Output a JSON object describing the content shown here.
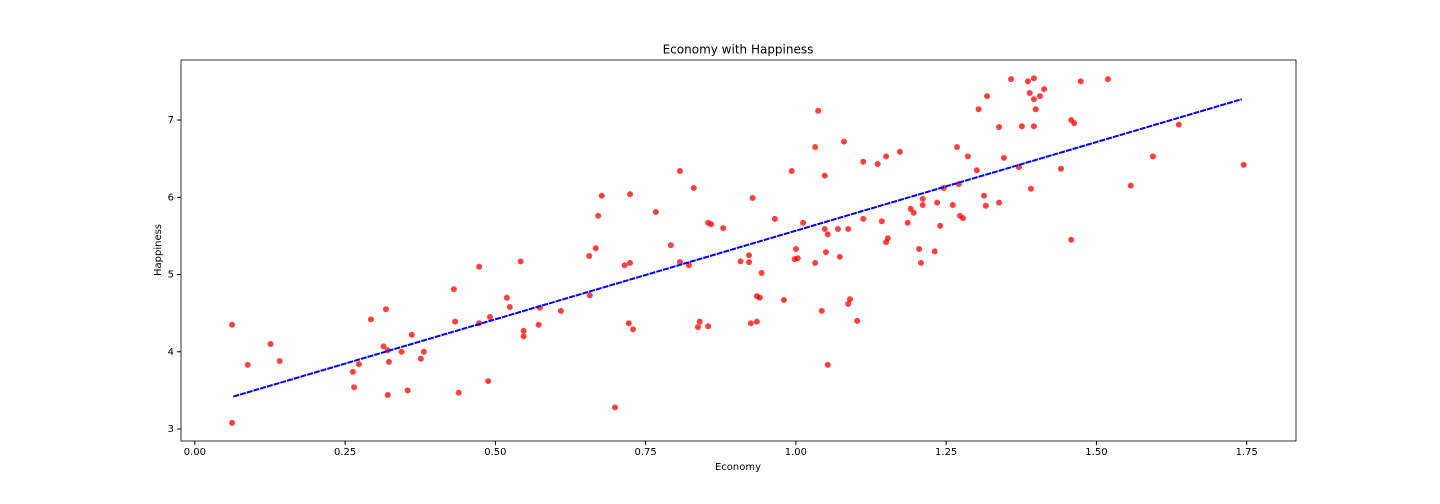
{
  "chart_data": {
    "type": "scatter",
    "title": "Economy with Happiness",
    "xlabel": "Economy",
    "ylabel": "Happiness",
    "x": [
      0.062,
      0.062,
      0.088,
      0.126,
      0.141,
      0.263,
      0.265,
      0.273,
      0.293,
      0.314,
      0.318,
      0.321,
      0.323,
      0.321,
      0.344,
      0.354,
      0.361,
      0.376,
      0.381,
      0.431,
      0.433,
      0.439,
      0.473,
      0.473,
      0.488,
      0.491,
      0.519,
      0.524,
      0.542,
      0.547,
      0.547,
      0.572,
      0.574,
      0.609,
      0.657,
      0.699,
      0.656,
      0.667,
      0.671,
      0.677,
      0.715,
      0.724,
      0.722,
      0.729,
      0.724,
      0.767,
      0.792,
      0.807,
      0.807,
      0.822,
      0.83,
      0.837,
      0.84,
      0.854,
      0.854,
      0.859,
      0.879,
      0.908,
      0.922,
      0.922,
      0.928,
      0.925,
      0.935,
      0.935,
      0.94,
      0.943,
      0.965,
      0.98,
      0.993,
      0.998,
      1.003,
      1.0,
      1.012,
      1.032,
      1.032,
      1.037,
      1.043,
      1.048,
      1.048,
      1.05,
      1.053,
      1.053,
      1.07,
      1.073,
      1.08,
      1.087,
      1.087,
      1.09,
      1.102,
      1.112,
      1.112,
      1.136,
      1.143,
      1.15,
      1.15,
      1.153,
      1.173,
      1.186,
      1.191,
      1.196,
      1.205,
      1.208,
      1.211,
      1.211,
      1.231,
      1.235,
      1.24,
      1.246,
      1.261,
      1.268,
      1.271,
      1.273,
      1.278,
      1.286,
      1.301,
      1.304,
      1.313,
      1.318,
      1.316,
      1.338,
      1.338,
      1.346,
      1.358,
      1.371,
      1.376,
      1.386,
      1.389,
      1.391,
      1.396,
      1.396,
      1.399,
      1.396,
      1.406,
      1.413,
      1.441,
      1.458,
      1.463,
      1.458,
      1.474,
      1.519,
      1.557,
      1.594,
      1.637,
      1.745
    ],
    "values": [
      4.35,
      3.08,
      3.83,
      4.1,
      3.88,
      3.74,
      3.54,
      3.84,
      4.42,
      4.07,
      4.55,
      4.02,
      3.87,
      3.44,
      4.0,
      3.5,
      4.22,
      3.91,
      4.0,
      4.81,
      4.39,
      3.47,
      5.1,
      4.37,
      3.62,
      4.45,
      4.7,
      4.58,
      5.17,
      4.27,
      4.2,
      4.35,
      4.57,
      4.53,
      4.73,
      3.28,
      5.24,
      5.34,
      5.76,
      6.02,
      5.12,
      5.15,
      4.37,
      4.29,
      6.04,
      5.81,
      5.38,
      6.34,
      5.16,
      5.12,
      6.12,
      4.32,
      4.39,
      4.33,
      5.67,
      5.65,
      5.6,
      5.17,
      5.25,
      5.16,
      5.99,
      4.37,
      4.72,
      4.39,
      4.7,
      5.02,
      5.72,
      4.67,
      6.34,
      5.2,
      5.21,
      5.33,
      5.67,
      5.15,
      6.65,
      7.12,
      4.53,
      6.28,
      5.59,
      5.29,
      5.52,
      3.83,
      5.59,
      5.23,
      6.72,
      5.59,
      4.62,
      4.68,
      4.4,
      5.72,
      6.46,
      6.43,
      5.69,
      6.53,
      5.42,
      5.47,
      6.59,
      5.67,
      5.85,
      5.8,
      5.33,
      5.15,
      5.9,
      5.98,
      5.3,
      5.93,
      5.63,
      6.12,
      5.9,
      6.65,
      6.17,
      5.76,
      5.73,
      6.53,
      6.35,
      7.14,
      6.02,
      7.31,
      5.89,
      5.93,
      6.91,
      6.51,
      7.53,
      6.39,
      6.92,
      7.5,
      7.35,
      6.11,
      7.27,
      7.54,
      7.14,
      6.92,
      7.31,
      7.4,
      6.37,
      7.0,
      6.96,
      5.45,
      7.5,
      7.53,
      6.15,
      6.53,
      6.94,
      6.42
    ],
    "color": "#ff0000",
    "trend": {
      "x": [
        0.064,
        1.742
      ],
      "values": [
        3.42,
        7.27
      ],
      "color": "#0000ff"
    },
    "xlim": [
      -0.023,
      1.832
    ],
    "ylim": [
      2.845,
      7.777
    ],
    "xticks": [
      {
        "value": 0,
        "label": "0.00"
      },
      {
        "value": 0.25,
        "label": "0.25"
      },
      {
        "value": 0.5,
        "label": "0.50"
      },
      {
        "value": 0.75,
        "label": "0.75"
      },
      {
        "value": 1,
        "label": "1.00"
      },
      {
        "value": 1.25,
        "label": "1.25"
      },
      {
        "value": 1.5,
        "label": "1.50"
      },
      {
        "value": 1.75,
        "label": "1.75"
      }
    ],
    "yticks": [
      3,
      4,
      5,
      6,
      7
    ]
  }
}
